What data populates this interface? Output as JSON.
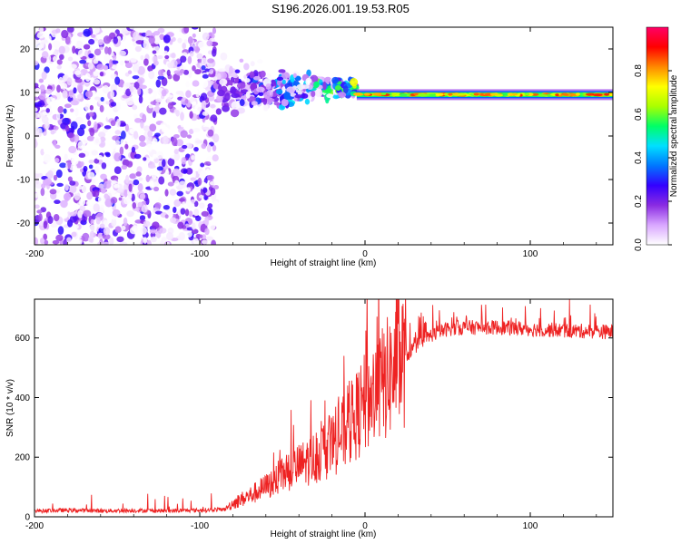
{
  "title": "S196.2026.001.19.53.R05",
  "chart_data": [
    {
      "type": "heatmap",
      "xlabel": "Height of straight line (km)",
      "ylabel": "Frequency (Hz)",
      "xlim": [
        -200,
        150
      ],
      "ylim": [
        -25,
        25
      ],
      "xticks": [
        -200,
        -100,
        0,
        100
      ],
      "yticks": [
        20,
        10,
        0,
        -10,
        -20
      ],
      "colorbar": {
        "label": "Normalized spectral amplitude",
        "range": [
          0,
          1
        ],
        "ticks": [
          "0.0",
          "0.2",
          "0.4",
          "0.6",
          "0.8"
        ],
        "colormap": [
          "#ffffff",
          "#d9a7ff",
          "#8a2be2",
          "#3300ff",
          "#0077ff",
          "#00e0ff",
          "#00ff66",
          "#aaff00",
          "#ffff00",
          "#ff8800",
          "#ff0000",
          "#ff0066"
        ]
      },
      "features": [
        {
          "region": "noise",
          "x_range": [
            -200,
            -90
          ],
          "freq_range": [
            -25,
            25
          ],
          "amplitude": 0.15
        },
        {
          "region": "transition",
          "x_range": [
            -90,
            -5
          ],
          "freq_center": 11,
          "amplitude": 0.4
        },
        {
          "region": "line",
          "x_range": [
            -5,
            150
          ],
          "freq_center": 9.5,
          "amplitude": 0.9
        }
      ]
    },
    {
      "type": "line",
      "xlabel": "Height of straight line (km)",
      "ylabel": "SNR (10 * v/v)",
      "xlim": [
        -200,
        150
      ],
      "ylim": [
        0,
        730
      ],
      "xticks": [
        -200,
        -100,
        0,
        100
      ],
      "yticks": [
        0,
        200,
        400,
        600
      ],
      "color": "#ee2222",
      "series": [
        {
          "name": "SNR",
          "x": [
            -200,
            -180,
            -160,
            -140,
            -120,
            -100,
            -85,
            -80,
            -70,
            -60,
            -50,
            -40,
            -30,
            -20,
            -10,
            0,
            10,
            20,
            30,
            40,
            50,
            60,
            80,
            100,
            120,
            150
          ],
          "y": [
            20,
            22,
            20,
            21,
            20,
            22,
            25,
            45,
            70,
            100,
            140,
            170,
            200,
            240,
            300,
            380,
            440,
            510,
            570,
            610,
            630,
            635,
            635,
            630,
            625,
            620
          ]
        }
      ]
    }
  ]
}
